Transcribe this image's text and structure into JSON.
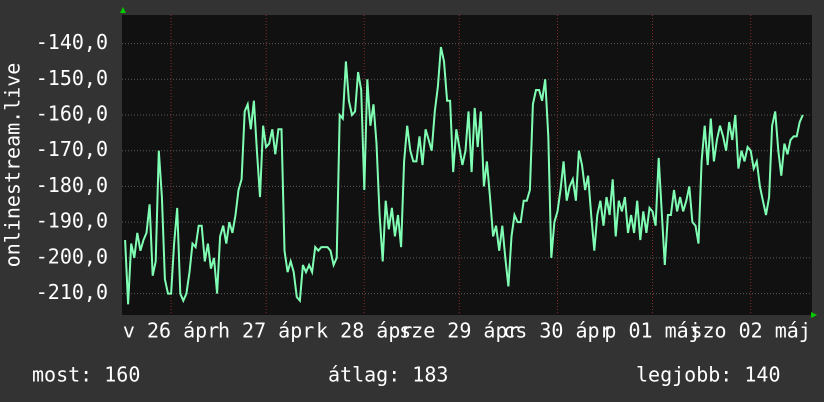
{
  "chart_data": {
    "type": "line",
    "ylabel": "onlinestream.live",
    "series": [
      {
        "name": "onlinestream.live",
        "color": "#80ffb4",
        "values": [
          -195,
          -213,
          -196,
          -200,
          -193,
          -198,
          -195,
          -193,
          -185,
          -205,
          -201,
          -170,
          -183,
          -206,
          -210,
          -210,
          -196,
          -186,
          -210,
          -212,
          -210,
          -204,
          -196,
          -197,
          -191,
          -191,
          -201,
          -196,
          -203,
          -200,
          -210,
          -194,
          -191,
          -196,
          -190,
          -193,
          -188,
          -181,
          -178,
          -159,
          -157,
          -164,
          -156,
          -170,
          -183,
          -163,
          -169,
          -168,
          -164,
          -171,
          -164,
          -164,
          -198,
          -204,
          -201,
          -204,
          -211,
          -212,
          -202,
          -204,
          -202,
          -204,
          -197,
          -198,
          -197,
          -197,
          -197,
          -198,
          -202,
          -200,
          -160,
          -161,
          -145,
          -156,
          -160,
          -159,
          -148,
          -153,
          -181,
          -150,
          -163,
          -157,
          -168,
          -188,
          -201,
          -184,
          -192,
          -186,
          -194,
          -188,
          -197,
          -173,
          -163,
          -170,
          -173,
          -173,
          -166,
          -174,
          -164,
          -167,
          -170,
          -159,
          -152,
          -141,
          -145,
          -156,
          -156,
          -176,
          -164,
          -169,
          -174,
          -170,
          -159,
          -176,
          -158,
          -169,
          -159,
          -180,
          -173,
          -183,
          -194,
          -191,
          -198,
          -191,
          -200,
          -208,
          -194,
          -188,
          -190,
          -190,
          -184,
          -184,
          -181,
          -157,
          -153,
          -153,
          -156,
          -150,
          -166,
          -200,
          -190,
          -187,
          -181,
          -173,
          -184,
          -180,
          -178,
          -184,
          -170,
          -174,
          -181,
          -177,
          -188,
          -198,
          -188,
          -184,
          -191,
          -183,
          -188,
          -178,
          -194,
          -184,
          -187,
          -183,
          -193,
          -188,
          -193,
          -184,
          -195,
          -187,
          -193,
          -186,
          -187,
          -191,
          -172,
          -187,
          -202,
          -188,
          -188,
          -181,
          -187,
          -183,
          -187,
          -184,
          -180,
          -190,
          -191,
          -196,
          -173,
          -163,
          -174,
          -161,
          -173,
          -167,
          -163,
          -166,
          -170,
          -162,
          -167,
          -160,
          -175,
          -170,
          -173,
          -169,
          -170,
          -175,
          -173,
          -180,
          -184,
          -188,
          -183,
          -163,
          -159,
          -170,
          -177,
          -168,
          -171,
          -167,
          -166,
          -166,
          -162,
          -160
        ]
      }
    ],
    "xticks": [
      {
        "value": 15,
        "label": "v 26 ápr"
      },
      {
        "value": 46,
        "label": "h 27 ápr"
      },
      {
        "value": 78,
        "label": "k 28 ápr"
      },
      {
        "value": 109,
        "label": "sze 29 ápr"
      },
      {
        "value": 141,
        "label": "cs 30 ápr"
      },
      {
        "value": 172,
        "label": "p 01 máj"
      },
      {
        "value": 204,
        "label": "szo 02 máj"
      }
    ],
    "xlim": [
      -1,
      224
    ],
    "ylim": [
      -216,
      -132
    ],
    "yticks": [
      {
        "value": -140,
        "label": "-140,0"
      },
      {
        "value": -150,
        "label": "-150,0"
      },
      {
        "value": -160,
        "label": "-160,0"
      },
      {
        "value": -170,
        "label": "-170,0"
      },
      {
        "value": -180,
        "label": "-180,0"
      },
      {
        "value": -190,
        "label": "-190,0"
      },
      {
        "value": -200,
        "label": "-200,0"
      },
      {
        "value": -210,
        "label": "-210,0"
      }
    ],
    "grid": true,
    "stats": [
      {
        "label": "most: 160"
      },
      {
        "label": "átlag: 183"
      },
      {
        "label": "legjobb: 140"
      }
    ]
  }
}
